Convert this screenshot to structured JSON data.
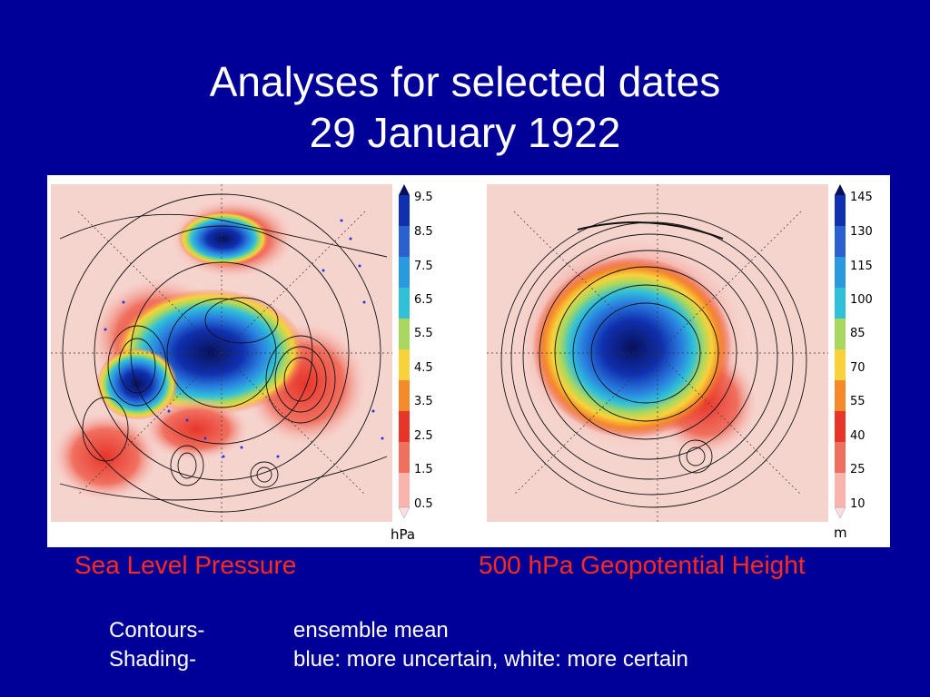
{
  "slide": {
    "title_line1": "Analyses for selected dates",
    "title_line2": "29 January 1922"
  },
  "left_panel": {
    "colorbar_ticks": [
      "9.5",
      "8.5",
      "7.5",
      "6.5",
      "5.5",
      "4.5",
      "3.5",
      "2.5",
      "1.5",
      "0.5"
    ],
    "unit": "hPa",
    "caption": "Sea Level Pressure"
  },
  "right_panel": {
    "colorbar_ticks": [
      "145",
      "130",
      "115",
      "100",
      "85",
      "70",
      "55",
      "40",
      "25",
      "10"
    ],
    "unit": "m",
    "caption": "500 hPa Geopotential Height"
  },
  "legend": {
    "contours_label": "Contours-",
    "contours_text": "ensemble mean",
    "shading_label": "Shading-",
    "shading_text": "blue: more uncertain, white: more certain"
  },
  "colors": {
    "background": "#000099",
    "title": "#ffffff",
    "caption": "#ff2a1a",
    "colormap": [
      "#fde0dd",
      "#f8b4ad",
      "#f07060",
      "#e8352a",
      "#f58a2a",
      "#f8d23a",
      "#a8d860",
      "#30c0d8",
      "#2a80e0",
      "#1030b0",
      "#08105a"
    ]
  }
}
